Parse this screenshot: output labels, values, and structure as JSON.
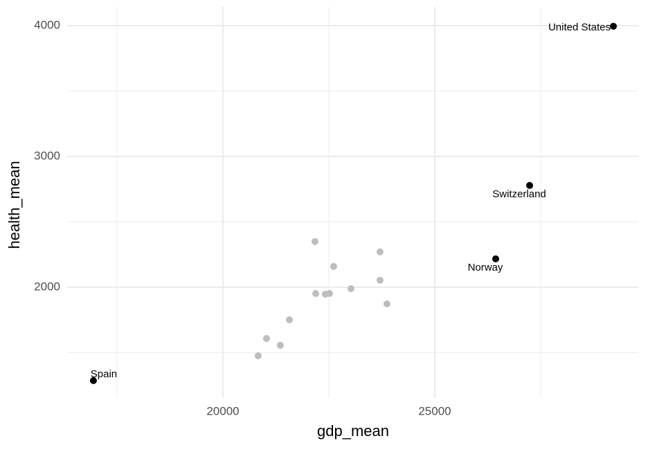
{
  "chart_data": {
    "type": "scatter",
    "x_label": "gdp_mean",
    "y_label": "health_mean",
    "xlim": [
      16324,
      29804
    ],
    "ylim": [
      1153,
      4143
    ],
    "xticks": [
      20000,
      25000
    ],
    "yticks": [
      2000,
      3000,
      4000
    ],
    "xminor": [
      17500,
      22500,
      27500
    ],
    "yminor": [
      1500,
      2500,
      3500
    ],
    "grid": true,
    "series": [
      {
        "color": "#bdbdbd",
        "x": [
          22173,
          23709,
          22614,
          23709,
          23023,
          22190,
          22418,
          22516,
          23873,
          21569,
          21029,
          21356,
          20833
        ],
        "values": [
          2349,
          2270,
          2159,
          2053,
          1989,
          1952,
          1947,
          1952,
          1873,
          1751,
          1608,
          1556,
          1476
        ]
      },
      {
        "color": "#000000",
        "x": [
          29216,
          27239,
          26438,
          16944
        ],
        "values": [
          3995,
          2778,
          2217,
          1286
        ],
        "labels": [
          "United States",
          "Switzerland",
          "Norway",
          "Spain"
        ]
      }
    ]
  }
}
